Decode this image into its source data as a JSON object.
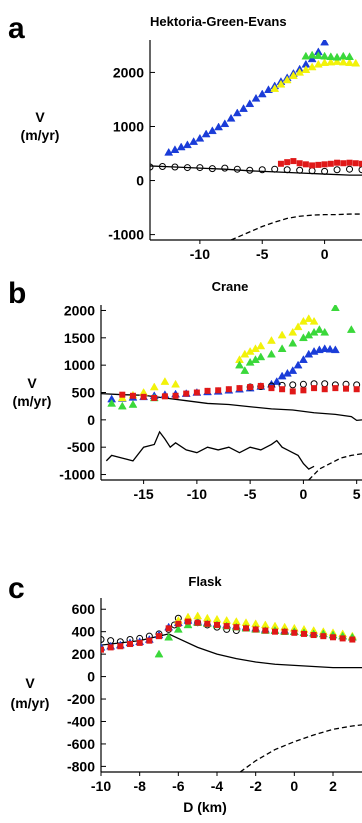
{
  "figure": {
    "xlabel_bottom": "D (km)"
  },
  "colors": {
    "blue": "#1a3cd8",
    "yellow": "#f2f20a",
    "green": "#3ad83a",
    "red": "#e01818",
    "black": "#000000",
    "gray": "#808080"
  },
  "chart_data": [
    {
      "type": "scatter",
      "panel": "a",
      "title": "Hektoria-Green-Evans",
      "ylabel_line1": "V",
      "ylabel_line2": "(m/yr)",
      "xlim": [
        -14,
        3
      ],
      "ylim": [
        -1100,
        2600
      ],
      "xticks": [
        -10,
        -5,
        0
      ],
      "yticks": [
        -1000,
        0,
        1000,
        2000
      ],
      "grid": false,
      "series": [
        {
          "key": "blue",
          "marker": "triangle",
          "x": [
            -12.5,
            -12,
            -11.5,
            -11,
            -10.5,
            -10,
            -9.5,
            -9,
            -8.5,
            -8,
            -7.5,
            -7,
            -6.5,
            -6,
            -5.5,
            -5,
            -4.5,
            -4,
            -3.5,
            -3,
            -2.5,
            -2,
            -1.5,
            -1,
            -0.5,
            0
          ],
          "y": [
            520,
            570,
            620,
            660,
            720,
            780,
            860,
            920,
            990,
            1050,
            1150,
            1250,
            1330,
            1420,
            1520,
            1600,
            1680,
            1750,
            1830,
            1900,
            1980,
            2060,
            2150,
            2250,
            2380,
            2560
          ]
        },
        {
          "key": "yellow",
          "marker": "triangle",
          "x": [
            -4,
            -3.5,
            -3,
            -2.5,
            -2,
            -1.5,
            -1,
            -0.5,
            0,
            0.5,
            1,
            1.5,
            2,
            2.5
          ],
          "y": [
            1700,
            1780,
            1860,
            1940,
            2000,
            2050,
            2100,
            2150,
            2180,
            2190,
            2200,
            2190,
            2180,
            2170
          ]
        },
        {
          "key": "green",
          "marker": "triangle",
          "x": [
            -1.5,
            -1,
            -0.5,
            0,
            0.5,
            1,
            1.5,
            2
          ],
          "y": [
            2300,
            2320,
            2310,
            2300,
            2290,
            2280,
            2300,
            2290
          ]
        },
        {
          "key": "black",
          "marker": "circle",
          "x": [
            -14,
            -13,
            -12,
            -11,
            -10,
            -9,
            -8,
            -7,
            -6,
            -5,
            -4,
            -3,
            -2,
            -1,
            0,
            1,
            2,
            3
          ],
          "y": [
            250,
            260,
            250,
            240,
            240,
            220,
            230,
            210,
            190,
            200,
            210,
            200,
            190,
            180,
            170,
            200,
            210,
            200
          ]
        },
        {
          "key": "red",
          "marker": "square",
          "x": [
            -3.5,
            -3,
            -2.5,
            -2,
            -1.5,
            -1,
            -0.5,
            0,
            0.5,
            1,
            1.5,
            2,
            2.5,
            3
          ],
          "y": [
            310,
            340,
            360,
            320,
            300,
            280,
            290,
            300,
            310,
            330,
            320,
            330,
            320,
            310
          ]
        }
      ],
      "lines": [
        {
          "style": "solid",
          "x": [
            -14,
            -12,
            -10,
            -8,
            -6,
            -4,
            -2,
            0,
            2,
            3
          ],
          "y": [
            270,
            250,
            230,
            210,
            180,
            160,
            140,
            120,
            100,
            100
          ]
        },
        {
          "style": "dashed",
          "x": [
            -7.5,
            -6,
            -5,
            -4,
            -3,
            -2,
            -1,
            0,
            1,
            2,
            3
          ],
          "y": [
            -1100,
            -950,
            -850,
            -770,
            -700,
            -660,
            -640,
            -630,
            -630,
            -620,
            -620
          ]
        }
      ]
    },
    {
      "type": "scatter",
      "panel": "b",
      "title": "Crane",
      "ylabel_line1": "V",
      "ylabel_line2": "(m/yr)",
      "xlim": [
        -19,
        5.5
      ],
      "ylim": [
        -1100,
        2100
      ],
      "xticks": [
        -15,
        -10,
        -5,
        0,
        5
      ],
      "yticks": [
        -1000,
        -500,
        0,
        500,
        1000,
        1500,
        2000
      ],
      "grid": false,
      "series": [
        {
          "key": "blue",
          "marker": "triangle",
          "x": [
            -18,
            -17,
            -16,
            -15,
            -14,
            -13,
            -12,
            -11,
            -10,
            -9,
            -8,
            -7,
            -6,
            -5,
            -4,
            -3,
            -2.5,
            -2,
            -1.5,
            -1,
            -0.5,
            0,
            0.5,
            1,
            1.5,
            2,
            2.5,
            3
          ],
          "y": [
            380,
            390,
            410,
            420,
            440,
            460,
            470,
            480,
            500,
            510,
            520,
            540,
            560,
            580,
            610,
            650,
            700,
            800,
            850,
            900,
            1000,
            1100,
            1200,
            1250,
            1280,
            1300,
            1290,
            1280
          ]
        },
        {
          "key": "yellow",
          "marker": "triangle",
          "x": [
            -17,
            -16,
            -15,
            -14,
            -13,
            -12,
            -6,
            -5.5,
            -5,
            -4.5,
            -4,
            -3,
            -2,
            -1,
            -0.5,
            0,
            0.5,
            1
          ],
          "y": [
            400,
            450,
            500,
            600,
            700,
            650,
            1100,
            1200,
            1250,
            1300,
            1350,
            1450,
            1550,
            1600,
            1700,
            1800,
            1850,
            1800
          ]
        },
        {
          "key": "green",
          "marker": "triangle",
          "x": [
            -18,
            -17,
            -16,
            -14,
            -6,
            -5.5,
            -5,
            -4.5,
            -4,
            -3,
            -2,
            -1,
            0,
            0.5,
            1,
            1.5,
            2,
            3,
            4.5
          ],
          "y": [
            300,
            250,
            280,
            400,
            1000,
            900,
            1050,
            1100,
            1150,
            1200,
            1300,
            1400,
            1500,
            1550,
            1600,
            1650,
            1600,
            2050,
            1650
          ]
        },
        {
          "key": "black",
          "marker": "circle",
          "x": [
            -5,
            -4,
            -3,
            -2,
            -1,
            0,
            1,
            2,
            3,
            4,
            5
          ],
          "y": [
            600,
            610,
            620,
            630,
            640,
            650,
            660,
            660,
            640,
            650,
            640
          ]
        },
        {
          "key": "red",
          "marker": "square",
          "x": [
            -17,
            -16,
            -15,
            -14,
            -13,
            -12,
            -11,
            -10,
            -9,
            -8,
            -7,
            -6,
            -5,
            -4,
            -3,
            -2,
            -1,
            0,
            1,
            2,
            3,
            4,
            5
          ],
          "y": [
            460,
            440,
            420,
            400,
            430,
            440,
            480,
            500,
            530,
            540,
            560,
            580,
            600,
            620,
            580,
            560,
            520,
            540,
            580,
            560,
            580,
            570,
            560
          ]
        }
      ],
      "lines": [
        {
          "style": "solid",
          "x": [
            -19,
            -17,
            -15,
            -13,
            -11,
            -9,
            -7,
            -5,
            -3,
            -1,
            1,
            3,
            4.5,
            5,
            5.5
          ],
          "y": [
            480,
            460,
            450,
            400,
            350,
            300,
            280,
            240,
            200,
            180,
            130,
            100,
            60,
            -10,
            0
          ]
        },
        {
          "style": "solid",
          "x": [
            -18.5,
            -18,
            -17,
            -16,
            -15,
            -14,
            -13.5,
            -13,
            -12.5,
            -12,
            -11,
            -10,
            -9,
            -8,
            -7,
            -6,
            -5,
            -4,
            -3,
            -2.5,
            -2,
            -1.5,
            -1,
            -0.5,
            0,
            0.5,
            1
          ],
          "y": [
            -750,
            -650,
            -700,
            -750,
            -500,
            -450,
            -220,
            -350,
            -500,
            -420,
            -550,
            -600,
            -500,
            -550,
            -500,
            -600,
            -500,
            -550,
            -450,
            -380,
            -500,
            -550,
            -600,
            -650,
            -800,
            -900,
            -850
          ]
        },
        {
          "style": "dashed",
          "x": [
            0.5,
            1.5,
            2.5,
            3.5,
            4.5,
            5.5
          ],
          "y": [
            -1100,
            -900,
            -800,
            -700,
            -650,
            -620
          ]
        }
      ]
    },
    {
      "type": "scatter",
      "panel": "c",
      "title": "Flask",
      "ylabel_line1": "V",
      "ylabel_line2": "(m/yr)",
      "xlim": [
        -10,
        3.5
      ],
      "ylim": [
        -850,
        700
      ],
      "xticks": [
        -10,
        -8,
        -6,
        -4,
        -2,
        0,
        2
      ],
      "yticks": [
        -800,
        -600,
        -400,
        -200,
        0,
        200,
        400,
        600
      ],
      "grid": false,
      "series": [
        {
          "key": "black",
          "marker": "circle",
          "x": [
            -10,
            -9.5,
            -9,
            -8.5,
            -8,
            -7.5,
            -7,
            -6.5,
            -6.2,
            -6,
            -5.5,
            -5,
            -4.5,
            -4,
            -3.5,
            -3
          ],
          "y": [
            330,
            320,
            310,
            330,
            340,
            360,
            380,
            420,
            460,
            520,
            500,
            480,
            460,
            440,
            420,
            410
          ]
        },
        {
          "key": "blue",
          "marker": "triangle",
          "x": [
            -10,
            -9.5,
            -9,
            -8.5,
            -8,
            -7.5,
            -7,
            -6.5,
            -6,
            -5.5,
            -5,
            -4.5,
            -4,
            -3.5,
            -3,
            -2.5,
            -2,
            -1.5,
            -1,
            -0.5,
            0,
            0.5,
            1,
            1.5,
            2,
            2.5,
            3
          ],
          "y": [
            260,
            270,
            280,
            300,
            310,
            330,
            370,
            440,
            480,
            500,
            490,
            480,
            470,
            460,
            450,
            440,
            430,
            420,
            410,
            410,
            400,
            390,
            390,
            380,
            370,
            360,
            350
          ]
        },
        {
          "key": "yellow",
          "marker": "triangle",
          "x": [
            -6,
            -5.5,
            -5,
            -4.5,
            -4,
            -3.5,
            -3,
            -2.5,
            -2,
            -1.5,
            -1,
            -0.5,
            0,
            0.5,
            1,
            1.5,
            2,
            2.5,
            3
          ],
          "y": [
            500,
            530,
            540,
            520,
            510,
            500,
            490,
            480,
            470,
            460,
            450,
            440,
            430,
            420,
            410,
            400,
            390,
            380,
            360
          ]
        },
        {
          "key": "green",
          "marker": "triangle",
          "x": [
            -7,
            -6.5,
            -6,
            -5.5,
            -5,
            -4.5,
            -4,
            -3.5,
            -3,
            -2.5,
            -2,
            -1.5,
            -1,
            -0.5,
            0,
            0.5,
            1,
            1.5,
            2,
            2.5,
            3
          ],
          "y": [
            200,
            350,
            420,
            460,
            480,
            470,
            460,
            450,
            440,
            430,
            420,
            410,
            410,
            400,
            400,
            390,
            380,
            380,
            370,
            360,
            350
          ]
        },
        {
          "key": "red",
          "marker": "square",
          "x": [
            -10,
            -9.5,
            -9,
            -8.5,
            -8,
            -7.5,
            -7,
            -6.5,
            -6,
            -5.5,
            -5,
            -4.5,
            -4,
            -3.5,
            -3,
            -2.5,
            -2,
            -1.5,
            -1,
            -0.5,
            0,
            0.5,
            1,
            1.5,
            2,
            2.5,
            3
          ],
          "y": [
            240,
            260,
            270,
            290,
            300,
            320,
            360,
            430,
            470,
            490,
            480,
            470,
            460,
            450,
            440,
            430,
            420,
            410,
            400,
            400,
            390,
            380,
            370,
            360,
            350,
            340,
            330
          ]
        }
      ],
      "lines": [
        {
          "style": "solid",
          "x": [
            -10,
            -9,
            -8,
            -7,
            -6.5,
            -6,
            -5,
            -4,
            -3,
            -2,
            -1,
            0,
            1,
            2,
            3,
            3.5
          ],
          "y": [
            280,
            300,
            320,
            360,
            380,
            340,
            260,
            200,
            160,
            130,
            110,
            100,
            90,
            80,
            80,
            80
          ]
        },
        {
          "style": "dashed",
          "x": [
            -2.8,
            -2,
            -1,
            0,
            1,
            2,
            3,
            3.5
          ],
          "y": [
            -850,
            -750,
            -650,
            -580,
            -520,
            -470,
            -440,
            -430
          ]
        }
      ]
    }
  ]
}
